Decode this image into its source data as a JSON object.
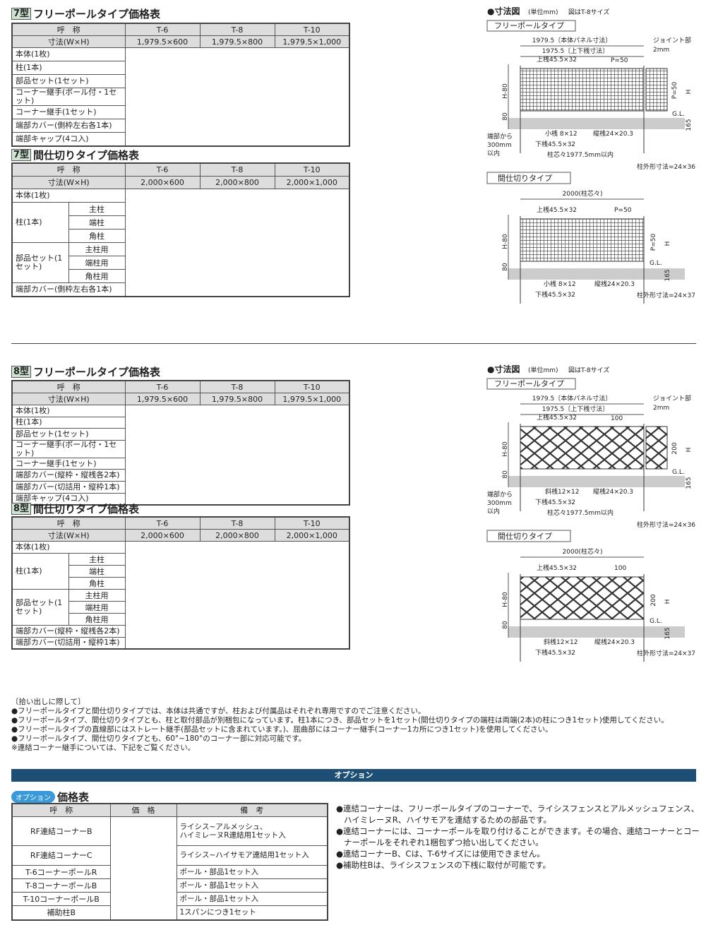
{
  "sections": [
    {
      "badge": "7型",
      "title": "フリーポールタイプ価格表",
      "head": {
        "name": "呼　称",
        "size": "寸法(W×H)",
        "cols": [
          "T-6",
          "T-8",
          "T-10"
        ],
        "sizes": [
          "1,979.5×600",
          "1,979.5×800",
          "1,979.5×1,000"
        ]
      },
      "rows": [
        {
          "label": "本体(1枚)"
        },
        {
          "label": "柱(1本)"
        },
        {
          "label": "部品セット(1セット)"
        },
        {
          "label": "コーナー継手(ポール付・1セット)"
        },
        {
          "label": "コーナー継手(1セット)"
        },
        {
          "label": "端部カバー(側枠左右各1本)"
        },
        {
          "label": "端部キャップ(4コ入)"
        }
      ]
    },
    {
      "badge": "7型",
      "title": "間仕切りタイプ価格表",
      "head": {
        "name": "呼　称",
        "size": "寸法(W×H)",
        "cols": [
          "T-6",
          "T-8",
          "T-10"
        ],
        "sizes": [
          "2,000×600",
          "2,000×800",
          "2,000×1,000"
        ]
      },
      "rows": [
        {
          "label": "本体(1枚)"
        },
        {
          "label": "柱(1本)",
          "sub": [
            "主柱",
            "端柱",
            "角柱"
          ]
        },
        {
          "label": "部品セット(1セット)",
          "sub": [
            "主柱用",
            "端柱用",
            "角柱用"
          ]
        },
        {
          "label": "端部カバー(側枠左右各1本)"
        }
      ]
    },
    {
      "badge": "8型",
      "title": "フリーポールタイプ価格表",
      "head": {
        "name": "呼　称",
        "size": "寸法(W×H)",
        "cols": [
          "T-6",
          "T-8",
          "T-10"
        ],
        "sizes": [
          "1,979.5×600",
          "1,979.5×800",
          "1,979.5×1,000"
        ]
      },
      "rows": [
        {
          "label": "本体(1枚)"
        },
        {
          "label": "柱(1本)"
        },
        {
          "label": "部品セット(1セット)"
        },
        {
          "label": "コーナー継手(ポール付・1セット)"
        },
        {
          "label": "コーナー継手(1セット)"
        },
        {
          "label": "端部カバー(縦枠・縦桟各2本)"
        },
        {
          "label": "端部カバー(切詰用・縦枠1本)"
        },
        {
          "label": "端部キャップ(4コ入)"
        }
      ]
    },
    {
      "badge": "8型",
      "title": "間仕切りタイプ価格表",
      "head": {
        "name": "呼　称",
        "size": "寸法(W×H)",
        "cols": [
          "T-6",
          "T-8",
          "T-10"
        ],
        "sizes": [
          "2,000×600",
          "2,000×800",
          "2,000×1,000"
        ]
      },
      "rows": [
        {
          "label": "本体(1枚)"
        },
        {
          "label": "柱(1本)",
          "sub": [
            "主柱",
            "端柱",
            "角柱"
          ]
        },
        {
          "label": "部品セット(1セット)",
          "sub": [
            "主柱用",
            "端柱用",
            "角柱用"
          ]
        },
        {
          "label": "端部カバー(縦枠・縦桟各2本)"
        },
        {
          "label": "端部カバー(切詰用・縦枠1本)"
        }
      ]
    }
  ],
  "diagrams": [
    {
      "heading": "●寸法図",
      "unit": "(単位mm)",
      "note": "図はT-8サイズ",
      "pattern": "grid",
      "free": {
        "title": "フリーポールタイプ",
        "panel": "1979.5〔本体パネル寸法〕",
        "rail": "1975.5〔上下桟寸法〕",
        "joint1": "ジョイント部",
        "joint2": "2mm",
        "top": "上桟45.5×32",
        "pitch": "P=50",
        "h80": "H-80",
        "vpitch": "P=50",
        "h": "H",
        "b80": "80",
        "gl": "G.L.",
        "d165": "165",
        "small": "小桟 8×12",
        "vert": "縦桟24×20.3",
        "end1": "端部から",
        "end2": "300mm",
        "end3": "以内",
        "bottom": "下桟45.5×32",
        "center": "柱芯々1977.5mm以内",
        "post": "柱外形寸法=24×36"
      },
      "part": {
        "title": "間仕切りタイプ",
        "span": "2000(柱芯々)",
        "top": "上桟45.5×32",
        "pitch": "P=50",
        "h80": "H-80",
        "vpitch": "P=50",
        "h": "H",
        "b80": "80",
        "gl": "G.L.",
        "d165": "165",
        "small": "小桟 8×12",
        "vert": "縦桟24×20.3",
        "bottom": "下桟45.5×32",
        "post": "柱外形寸法=24×37"
      }
    },
    {
      "heading": "●寸法図",
      "unit": "(単位mm)",
      "note": "図はT-8サイズ",
      "pattern": "lattice",
      "free": {
        "title": "フリーポールタイプ",
        "panel": "1979.5〔本体パネル寸法〕",
        "rail": "1975.5〔上下桟寸法〕",
        "joint1": "ジョイント部",
        "joint2": "2mm",
        "top": "上桟45.5×32",
        "pitch": "100",
        "h80": "H-80",
        "vpitch": "200",
        "h": "H",
        "b80": "80",
        "gl": "G.L.",
        "d165": "165",
        "small": "斜桟12×12",
        "vert": "縦桟24×20.3",
        "end1": "端部から",
        "end2": "300mm",
        "end3": "以内",
        "bottom": "下桟45.5×32",
        "center": "柱芯々1977.5mm以内",
        "post": "柱外形寸法=24×36"
      },
      "part": {
        "title": "間仕切りタイプ",
        "span": "2000(柱芯々)",
        "top": "上桟45.5×32",
        "pitch": "100",
        "h80": "H-80",
        "vpitch": "200",
        "h": "H",
        "b80": "80",
        "gl": "G.L.",
        "d165": "165",
        "small": "斜桟12×12",
        "vert": "縦桟24×20.3",
        "bottom": "下桟45.5×32",
        "post": "柱外形寸法=24×37"
      }
    }
  ],
  "notes": [
    "〔拾い出しに際して〕",
    "●フリーポールタイプと間仕切りタイプでは、本体は共通ですが、柱および付属品はそれぞれ専用ですのでご注意ください。",
    "●フリーポールタイプ、間仕切りタイプとも、柱と取付部品が別梱包になっています。柱1本につき、部品セットを1セット(間仕切りタイプの端柱は両端(2本)の柱につき1セット)使用してください。",
    "●フリーポールタイプの直線部にはストレート継手(部品セットに含まれています。)、屈曲部にはコーナー継手(コーナー1カ所につき1セット)を使用してください。",
    "●フリーポールタイプ、間仕切りタイプとも、60°~180°のコーナー部に対応可能です。",
    "※連結コーナー継手については、下記をご覧ください。"
  ],
  "option": {
    "bar": "オプション",
    "badge": "オプション",
    "title": "価格表",
    "colors": {
      "bar": "#1d4e75",
      "badge": "#3a9ad9"
    },
    "head": [
      "呼　称",
      "価　格",
      "備　考"
    ],
    "rows": [
      [
        "RF連結コーナーB",
        "",
        "ライシス~アルメッシュ、\nハイミレーヌR連結用1セット入"
      ],
      [
        "RF連結コーナーC",
        "",
        "ライシス~ハイサモア連結用1セット入"
      ],
      [
        "T-6コーナーポールR",
        "",
        "ポール・部品1セット入"
      ],
      [
        "T-8コーナーポールB",
        "",
        "ポール・部品1セット入"
      ],
      [
        "T-10コーナーポールB",
        "",
        "ポール・部品1セット入"
      ],
      [
        "補助柱B",
        "",
        "1スパンにつき1セット"
      ]
    ],
    "notes": [
      "●連結コーナーは、フリーポールタイプのコーナーで、ライシスフェンスとアルメッシュフェンス、ハイミレーヌR、ハイサモアを連結するための部品です。",
      "●連結コーナーには、コーナーポールを取り付けることができます。その場合、連結コーナーとコーナーポールをそれぞれ1梱包ずつ拾い出してください。",
      "●連結コーナーB、Cは、T-6サイズには使用できません。",
      "●補助柱Bは、ライシスフェンスの下桟に取付が可能です。"
    ]
  }
}
